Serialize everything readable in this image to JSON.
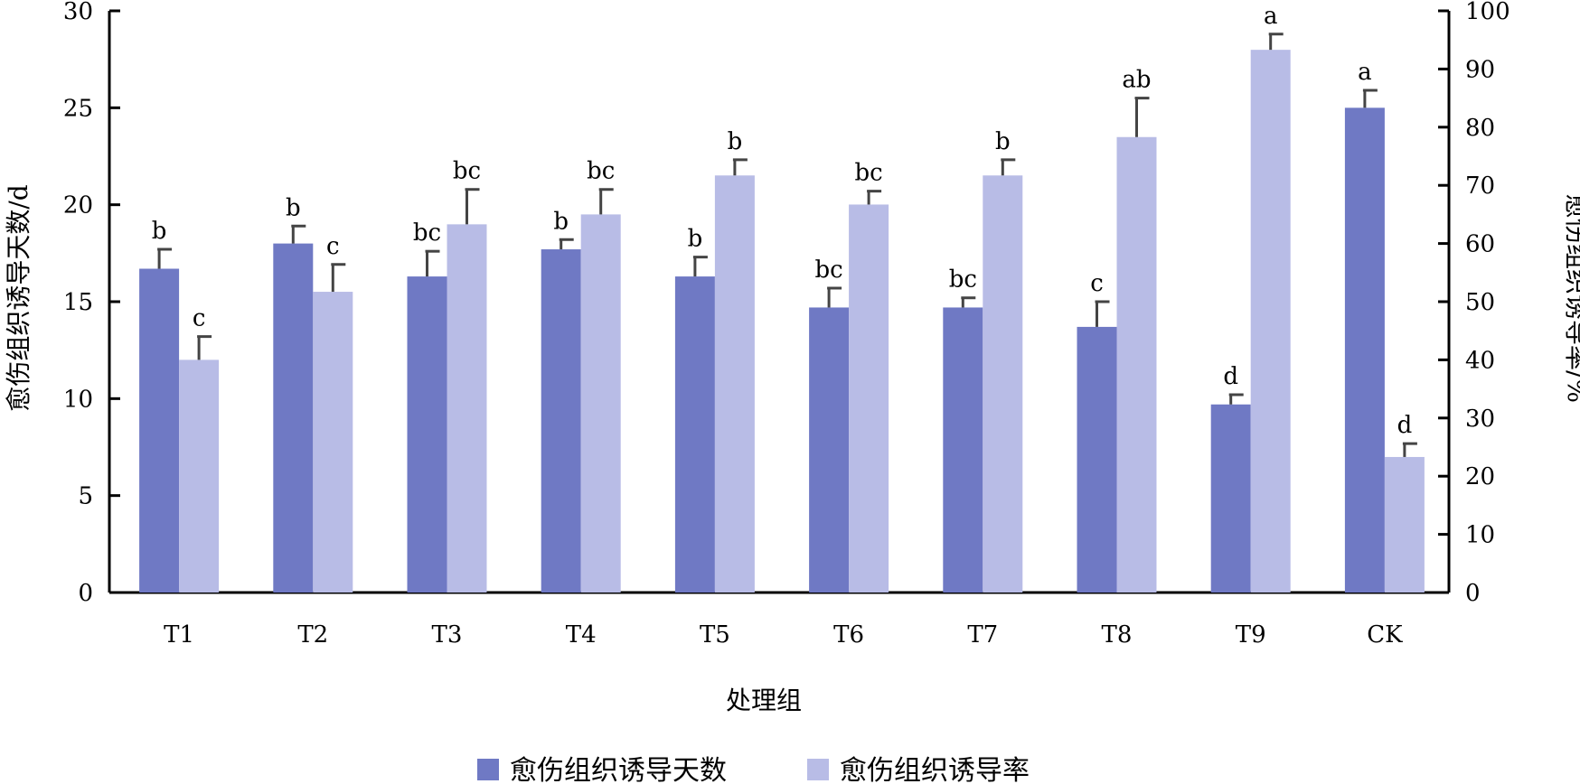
{
  "chart_data": {
    "type": "bar",
    "xlabel": "处理组",
    "ylabel": "愈伤组织诱导天数/d",
    "y2label": "愈伤组织诱导率/%",
    "ylim": [
      0,
      30
    ],
    "y2lim": [
      0,
      100
    ],
    "yticks": [
      "0",
      "5",
      "10",
      "15",
      "20",
      "25",
      "30"
    ],
    "y2ticks": [
      "0",
      "10",
      "20",
      "30",
      "40",
      "50",
      "60",
      "70",
      "80",
      "90",
      "100"
    ],
    "categories": [
      "T1",
      "T2",
      "T3",
      "T4",
      "T5",
      "T6",
      "T7",
      "T8",
      "T9",
      "CK"
    ],
    "series": [
      {
        "name": "愈伤组织诱导天数",
        "axis": "left",
        "color": "#6f79c4",
        "values": [
          16.7,
          18.0,
          16.3,
          17.7,
          16.3,
          14.7,
          14.7,
          13.7,
          9.7,
          25.0
        ],
        "errors": [
          1.0,
          0.9,
          1.3,
          0.5,
          1.0,
          1.0,
          0.5,
          1.3,
          0.5,
          0.9
        ],
        "labels": [
          "b",
          "b",
          "bc",
          "b",
          "b",
          "bc",
          "bc",
          "c",
          "d",
          "a"
        ]
      },
      {
        "name": "愈伤组织诱导率",
        "axis": "right",
        "color": "#b8bce6",
        "values": [
          40.0,
          51.7,
          63.3,
          65.0,
          71.7,
          66.7,
          71.7,
          78.3,
          93.3,
          23.3
        ],
        "errors": [
          4.0,
          4.7,
          6.0,
          4.3,
          2.7,
          2.3,
          2.7,
          6.7,
          2.7,
          2.3
        ],
        "labels": [
          "c",
          "c",
          "bc",
          "bc",
          "b",
          "bc",
          "b",
          "ab",
          "a",
          "d"
        ]
      }
    ],
    "legend": "bottom",
    "grid": false
  }
}
